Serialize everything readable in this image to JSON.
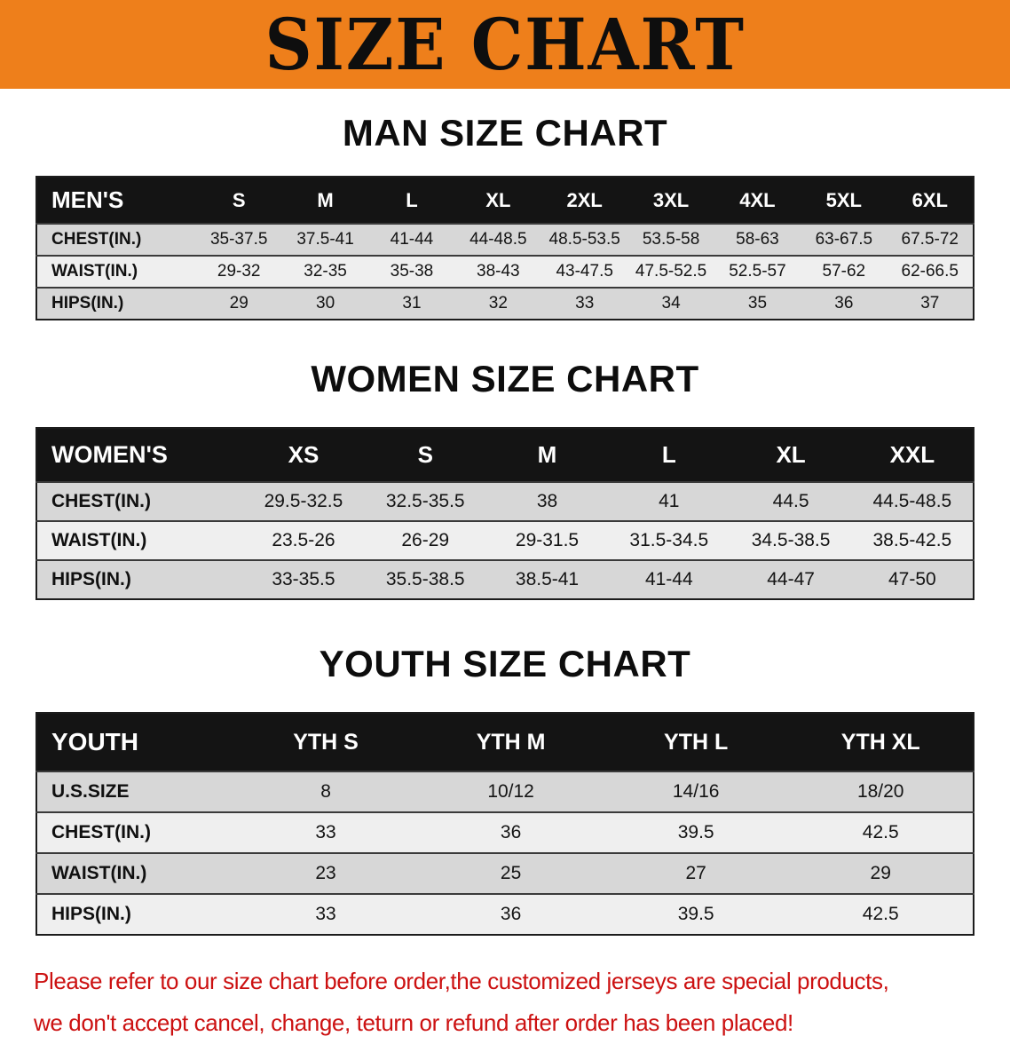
{
  "banner": {
    "title": "SIZE CHART"
  },
  "colors": {
    "banner-bg": "#ee7f1b",
    "header-bg": "#141414",
    "stripe": "#d7d7d7",
    "disclaimer-color": "#cc1111"
  },
  "sections": {
    "men": {
      "heading": "MAN SIZE CHART",
      "table": {
        "header": [
          "MEN'S",
          "S",
          "M",
          "L",
          "XL",
          "2XL",
          "3XL",
          "4XL",
          "5XL",
          "6XL"
        ],
        "rows": [
          [
            "CHEST(IN.)",
            "35-37.5",
            "37.5-41",
            "41-44",
            "44-48.5",
            "48.5-53.5",
            "53.5-58",
            "58-63",
            "63-67.5",
            "67.5-72"
          ],
          [
            "WAIST(IN.)",
            "29-32",
            "32-35",
            "35-38",
            "38-43",
            "43-47.5",
            "47.5-52.5",
            "52.5-57",
            "57-62",
            "62-66.5"
          ],
          [
            "HIPS(IN.)",
            "29",
            "30",
            "31",
            "32",
            "33",
            "34",
            "35",
            "36",
            "37"
          ]
        ]
      }
    },
    "women": {
      "heading": "WOMEN SIZE CHART",
      "table": {
        "header": [
          "WOMEN'S",
          "XS",
          "S",
          "M",
          "L",
          "XL",
          "XXL"
        ],
        "rows": [
          [
            "CHEST(IN.)",
            "29.5-32.5",
            "32.5-35.5",
            "38",
            "41",
            "44.5",
            "44.5-48.5"
          ],
          [
            "WAIST(IN.)",
            "23.5-26",
            "26-29",
            "29-31.5",
            "31.5-34.5",
            "34.5-38.5",
            "38.5-42.5"
          ],
          [
            "HIPS(IN.)",
            "33-35.5",
            "35.5-38.5",
            "38.5-41",
            "41-44",
            "44-47",
            "47-50"
          ]
        ]
      }
    },
    "youth": {
      "heading": "YOUTH SIZE CHART",
      "table": {
        "header": [
          "YOUTH",
          "YTH S",
          "YTH M",
          "YTH L",
          "YTH XL"
        ],
        "rows": [
          [
            "U.S.SIZE",
            "8",
            "10/12",
            "14/16",
            "18/20"
          ],
          [
            "CHEST(IN.)",
            "33",
            "36",
            "39.5",
            "42.5"
          ],
          [
            "WAIST(IN.)",
            "23",
            "25",
            "27",
            "29"
          ],
          [
            "HIPS(IN.)",
            "33",
            "36",
            "39.5",
            "42.5"
          ]
        ]
      }
    }
  },
  "disclaimer": {
    "line1": "Please refer to our size chart before order,the customized jerseys are special products,",
    "line2": "we don't accept cancel, change, teturn or refund after order has been placed!"
  }
}
